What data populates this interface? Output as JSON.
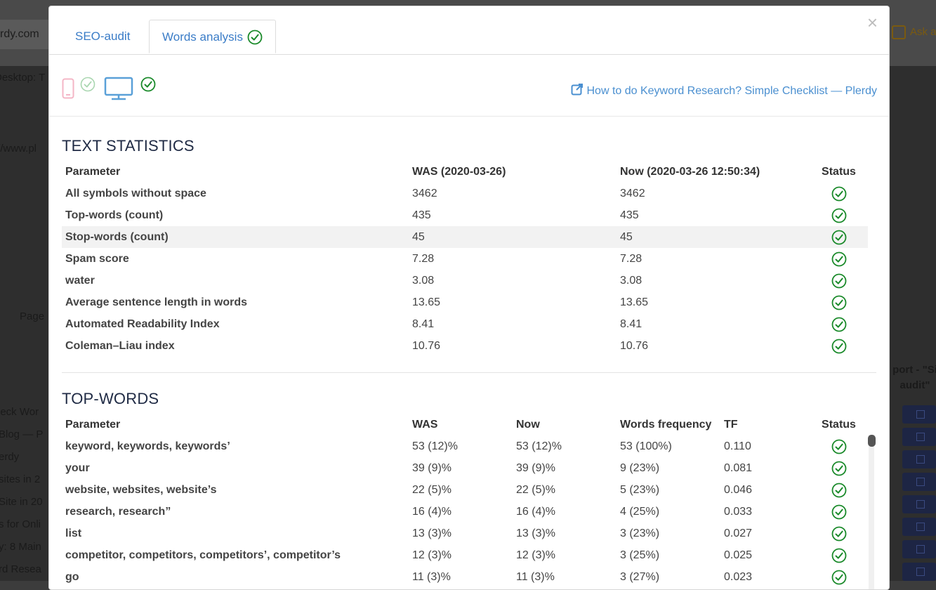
{
  "background": {
    "url_fragment": "rdy.com",
    "ask_label": "Ask a",
    "snippets": [
      "Desktop: T",
      "://www.pl",
      "Page",
      "heck Wor",
      "Blog — P",
      "erdy",
      "sites in 2",
      "Site in 20",
      "s for Onli",
      "y: 8 Main",
      "rd Resea"
    ],
    "report_label": "port - \"Si audit\""
  },
  "modal": {
    "close_label": "×",
    "tabs": [
      {
        "label": "SEO-audit",
        "active": false
      },
      {
        "label": "Words analysis",
        "active": true
      }
    ],
    "devices": {
      "mobile": {
        "icon": "mobile-phone-icon",
        "check": "check-circle-icon",
        "active": false
      },
      "desktop": {
        "icon": "desktop-monitor-icon",
        "check": "check-circle-icon",
        "active": true
      }
    },
    "keyword_link": "How to do Keyword Research? Simple Checklist — Plerdy"
  },
  "text_statistics": {
    "title": "TEXT STATISTICS",
    "headers": {
      "parameter": "Parameter",
      "was": "WAS (2020-03-26)",
      "now": "Now (2020-03-26 12:50:34)",
      "status": "Status"
    },
    "rows": [
      {
        "parameter": "All symbols without space",
        "was": "3462",
        "now": "3462",
        "status": "ok"
      },
      {
        "parameter": "Top-words (count)",
        "was": "435",
        "now": "435",
        "status": "ok"
      },
      {
        "parameter": "Stop-words (count)",
        "was": "45",
        "now": "45",
        "status": "ok"
      },
      {
        "parameter": "Spam score",
        "was": "7.28",
        "now": "7.28",
        "status": "ok"
      },
      {
        "parameter": "water",
        "was": "3.08",
        "now": "3.08",
        "status": "ok"
      },
      {
        "parameter": "Average sentence length in words",
        "was": "13.65",
        "now": "13.65",
        "status": "ok"
      },
      {
        "parameter": "Automated Readability Index",
        "was": "8.41",
        "now": "8.41",
        "status": "ok"
      },
      {
        "parameter": "Coleman–Liau index",
        "was": "10.76",
        "now": "10.76",
        "status": "ok"
      }
    ]
  },
  "top_words": {
    "title": "TOP-WORDS",
    "headers": {
      "parameter": "Parameter",
      "was": "WAS",
      "now": "Now",
      "freq": "Words frequency",
      "tf": "TF",
      "status": "Status"
    },
    "rows": [
      {
        "parameter": "keyword, keywords, keywords’",
        "was": "53 (12)%",
        "now": "53 (12)%",
        "freq": "53 (100%)",
        "tf": "0.110",
        "status": "ok"
      },
      {
        "parameter": "your",
        "was": "39 (9)%",
        "now": "39 (9)%",
        "freq": "9 (23%)",
        "tf": "0.081",
        "status": "ok"
      },
      {
        "parameter": "website, websites, website’s",
        "was": "22 (5)%",
        "now": "22 (5)%",
        "freq": "5 (23%)",
        "tf": "0.046",
        "status": "ok"
      },
      {
        "parameter": "research, research”",
        "was": "16 (4)%",
        "now": "16 (4)%",
        "freq": "4 (25%)",
        "tf": "0.033",
        "status": "ok"
      },
      {
        "parameter": "list",
        "was": "13 (3)%",
        "now": "13 (3)%",
        "freq": "3 (23%)",
        "tf": "0.027",
        "status": "ok"
      },
      {
        "parameter": "competitor, competitors, competitors’, competitor’s",
        "was": "12 (3)%",
        "now": "12 (3)%",
        "freq": "3 (25%)",
        "tf": "0.025",
        "status": "ok"
      },
      {
        "parameter": "go",
        "was": "11 (3)%",
        "now": "11 (3)%",
        "freq": "3 (27%)",
        "tf": "0.023",
        "status": "ok"
      }
    ]
  },
  "colors": {
    "link": "#3a7cc7",
    "ok": "#1a8a2a",
    "title": "#1f2a44"
  }
}
